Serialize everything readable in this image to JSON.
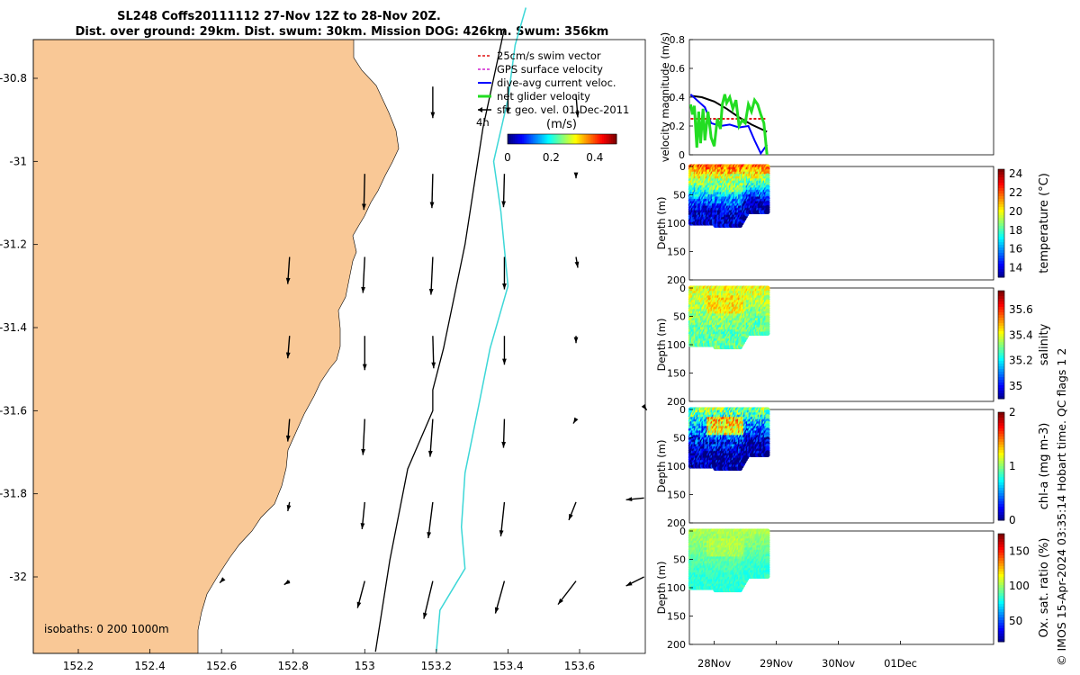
{
  "header": {
    "line1": "SL248 Coffs20111112 27-Nov 12Z to 28-Nov 20Z.",
    "line2": "Dist. over ground: 29km. Dist. swum: 30km. Mission DOG: 426km. Swum: 356km"
  },
  "copyright": "© IMOS 15-Apr-2024 03:35:14 Hobart time. QC flags 1  2",
  "colors": {
    "land": "#f9c896",
    "glider_track": "#000000",
    "isobath": "#3cd7d7"
  },
  "chart_data": [
    {
      "type": "map",
      "x_ticks": [
        "152.2",
        "152.4",
        "152.6",
        "152.8",
        "153",
        "153.2",
        "153.4",
        "153.6"
      ],
      "y_ticks": [
        "-30.8",
        "-31",
        "-31.2",
        "-31.4",
        "-31.6",
        "-31.8",
        "-32"
      ],
      "xlim": [
        152.05,
        153.78
      ],
      "ylim": [
        -32.17,
        -30.63
      ],
      "legend": {
        "position": "top-right",
        "items": [
          {
            "label": "25cm/s swim vector",
            "color": "#e01010",
            "style": "dashed"
          },
          {
            "label": "GPS surface velocity",
            "color": "#d020d0",
            "style": "dashed"
          },
          {
            "label": "dive-avg current veloc.",
            "color": "#0000ff",
            "style": "solid"
          },
          {
            "label": "net glider velocity",
            "color": "#22dd22",
            "style": "solid"
          },
          {
            "label": "sfc geo. vel. 01-Dec-2011",
            "color": "#000000",
            "style": "arrow"
          }
        ]
      },
      "time_label": "4h",
      "colorbar": {
        "label": "(m/s)",
        "ticks": [
          "0",
          "0.2",
          "0.4"
        ],
        "range": [
          0,
          0.5
        ]
      },
      "isobath_label": "isobaths: 0   200  1000m",
      "vectors": [
        {
          "lon": 153.19,
          "lat": -30.82,
          "u": 0.0,
          "v": -0.35
        },
        {
          "lon": 153.4,
          "lat": -30.82,
          "u": 0.0,
          "v": -0.3
        },
        {
          "lon": 153.59,
          "lat": -30.84,
          "u": 0.02,
          "v": -0.25
        },
        {
          "lon": 153.0,
          "lat": -31.03,
          "u": -0.01,
          "v": -0.4
        },
        {
          "lon": 153.19,
          "lat": -31.03,
          "u": -0.01,
          "v": -0.38
        },
        {
          "lon": 153.39,
          "lat": -31.03,
          "u": -0.01,
          "v": -0.37
        },
        {
          "lon": 153.59,
          "lat": -31.03,
          "u": 0.0,
          "v": -0.05
        },
        {
          "lon": 152.79,
          "lat": -31.23,
          "u": -0.02,
          "v": -0.3
        },
        {
          "lon": 153.0,
          "lat": -31.23,
          "u": -0.02,
          "v": -0.4
        },
        {
          "lon": 153.19,
          "lat": -31.23,
          "u": -0.02,
          "v": -0.42
        },
        {
          "lon": 153.39,
          "lat": -31.23,
          "u": 0.0,
          "v": -0.36
        },
        {
          "lon": 153.59,
          "lat": -31.23,
          "u": 0.02,
          "v": -0.12
        },
        {
          "lon": 152.79,
          "lat": -31.42,
          "u": -0.02,
          "v": -0.25
        },
        {
          "lon": 153.0,
          "lat": -31.42,
          "u": 0.0,
          "v": -0.38
        },
        {
          "lon": 153.19,
          "lat": -31.42,
          "u": 0.01,
          "v": -0.36
        },
        {
          "lon": 153.39,
          "lat": -31.42,
          "u": 0.0,
          "v": -0.32
        },
        {
          "lon": 153.59,
          "lat": -31.42,
          "u": 0.0,
          "v": -0.08
        },
        {
          "lon": 152.79,
          "lat": -31.62,
          "u": -0.02,
          "v": -0.25
        },
        {
          "lon": 153.0,
          "lat": -31.62,
          "u": -0.02,
          "v": -0.4
        },
        {
          "lon": 153.19,
          "lat": -31.62,
          "u": -0.03,
          "v": -0.42
        },
        {
          "lon": 153.39,
          "lat": -31.62,
          "u": -0.01,
          "v": -0.32
        },
        {
          "lon": 153.59,
          "lat": -31.62,
          "u": -0.03,
          "v": -0.05
        },
        {
          "lon": 153.78,
          "lat": -31.59,
          "u": 0.03,
          "v": -0.04
        },
        {
          "lon": 152.79,
          "lat": -31.82,
          "u": -0.02,
          "v": -0.1
        },
        {
          "lon": 153.0,
          "lat": -31.82,
          "u": -0.03,
          "v": -0.3
        },
        {
          "lon": 153.19,
          "lat": -31.82,
          "u": -0.05,
          "v": -0.4
        },
        {
          "lon": 153.39,
          "lat": -31.82,
          "u": -0.04,
          "v": -0.38
        },
        {
          "lon": 153.59,
          "lat": -31.82,
          "u": -0.08,
          "v": -0.2
        },
        {
          "lon": 153.78,
          "lat": -31.81,
          "u": -0.2,
          "v": -0.02
        },
        {
          "lon": 152.6,
          "lat": -32.01,
          "u": -0.02,
          "v": -0.02
        },
        {
          "lon": 152.79,
          "lat": -32.01,
          "u": -0.06,
          "v": -0.04
        },
        {
          "lon": 153.0,
          "lat": -32.01,
          "u": -0.08,
          "v": -0.3
        },
        {
          "lon": 153.19,
          "lat": -32.01,
          "u": -0.1,
          "v": -0.42
        },
        {
          "lon": 153.39,
          "lat": -32.01,
          "u": -0.1,
          "v": -0.36
        },
        {
          "lon": 153.59,
          "lat": -32.01,
          "u": -0.2,
          "v": -0.26
        },
        {
          "lon": 153.78,
          "lat": -32.0,
          "u": -0.2,
          "v": -0.1
        }
      ],
      "glider_track": [
        [
          153.39,
          -30.68
        ],
        [
          153.33,
          -30.92
        ],
        [
          153.28,
          -31.2
        ],
        [
          153.22,
          -31.45
        ],
        [
          153.19,
          -31.55
        ],
        [
          153.19,
          -31.6
        ],
        [
          153.12,
          -31.74
        ],
        [
          153.07,
          -31.96
        ],
        [
          153.03,
          -32.18
        ]
      ],
      "isobath_1000": [
        [
          153.45,
          -30.63
        ],
        [
          153.42,
          -30.72
        ],
        [
          153.4,
          -30.85
        ],
        [
          153.36,
          -31.0
        ],
        [
          153.38,
          -31.12
        ],
        [
          153.4,
          -31.3
        ],
        [
          153.35,
          -31.45
        ],
        [
          153.32,
          -31.58
        ],
        [
          153.28,
          -31.75
        ],
        [
          153.27,
          -31.88
        ],
        [
          153.28,
          -31.98
        ],
        [
          153.21,
          -32.08
        ],
        [
          153.2,
          -32.18
        ]
      ]
    },
    {
      "type": "line",
      "ylabel": "velocity magnitude (m/s)",
      "ylim": [
        0,
        0.8
      ],
      "y_ticks": [
        "0",
        "0.2",
        "0.4",
        "0.6",
        "0.8"
      ],
      "x_range_days": [
        27.6,
        32.5
      ],
      "series": [
        {
          "color": "#e01010",
          "style": "dashed",
          "x": [
            27.62,
            28.85
          ],
          "values": [
            0.25,
            0.25
          ]
        },
        {
          "color": "#000000",
          "style": "solid",
          "x": [
            27.62,
            27.8,
            28.0,
            28.2,
            28.4,
            28.6,
            28.85
          ],
          "values": [
            0.41,
            0.4,
            0.37,
            0.32,
            0.26,
            0.21,
            0.16
          ]
        },
        {
          "color": "#0000ff",
          "style": "solid",
          "x": [
            27.62,
            27.72,
            27.85,
            27.95,
            28.1,
            28.25,
            28.4,
            28.55,
            28.65,
            28.75,
            28.85
          ],
          "values": [
            0.42,
            0.38,
            0.33,
            0.22,
            0.2,
            0.21,
            0.19,
            0.2,
            0.1,
            0.01,
            0.07
          ]
        },
        {
          "color": "#22dd22",
          "style": "solid",
          "x": [
            27.62,
            27.65,
            27.68,
            27.72,
            27.75,
            27.78,
            27.82,
            27.85,
            27.9,
            27.95,
            28.0,
            28.05,
            28.1,
            28.13,
            28.17,
            28.2,
            28.25,
            28.3,
            28.35,
            28.4,
            28.45,
            28.5,
            28.55,
            28.6,
            28.65,
            28.7,
            28.75,
            28.8,
            28.85
          ],
          "values": [
            0.35,
            0.28,
            0.34,
            0.05,
            0.3,
            0.08,
            0.32,
            0.1,
            0.3,
            0.12,
            0.06,
            0.25,
            0.18,
            0.35,
            0.42,
            0.36,
            0.4,
            0.32,
            0.38,
            0.2,
            0.24,
            0.22,
            0.35,
            0.3,
            0.38,
            0.35,
            0.28,
            0.22,
            0.0
          ]
        }
      ]
    },
    {
      "type": "heatmap",
      "ylabel": "Depth (m)",
      "clabel": "temperature (°C)",
      "y_ticks": [
        "0",
        "50",
        "100",
        "150",
        "200"
      ],
      "c_ticks": [
        "14",
        "16",
        "18",
        "20",
        "22",
        "24"
      ],
      "crange": [
        13,
        24.5
      ],
      "surface": 22,
      "deep": 14,
      "mid_patch": 19,
      "noise": 1.5
    },
    {
      "type": "heatmap",
      "ylabel": "Depth (m)",
      "clabel": "salinity",
      "y_ticks": [
        "0",
        "50",
        "100",
        "150",
        "200"
      ],
      "c_ticks": [
        "35",
        "35.2",
        "35.4",
        "35.6"
      ],
      "crange": [
        34.9,
        35.75
      ],
      "surface": 35.42,
      "deep": 35.3,
      "mid_patch": 35.5,
      "noise": 0.08
    },
    {
      "type": "heatmap",
      "ylabel": "Depth (m)",
      "clabel": "chl-a (mg m-3)",
      "y_ticks": [
        "0",
        "50",
        "100",
        "150",
        "200"
      ],
      "c_ticks": [
        "0",
        "1",
        "2"
      ],
      "crange": [
        0,
        2
      ],
      "surface": 1.0,
      "deep": 0.05,
      "mid_patch": 1.9,
      "noise": 0.35
    },
    {
      "type": "heatmap",
      "ylabel": "Depth (m)",
      "clabel": "Ox. sat. ratio (%)",
      "y_ticks": [
        "0",
        "50",
        "100",
        "150",
        "200"
      ],
      "c_ticks": [
        "50",
        "100",
        "150"
      ],
      "crange": [
        20,
        175
      ],
      "surface": 105,
      "deep": 85,
      "mid_patch": 112,
      "noise": 6,
      "x_ticks": [
        "28Nov",
        "29Nov",
        "30Nov",
        "01Dec"
      ]
    }
  ]
}
